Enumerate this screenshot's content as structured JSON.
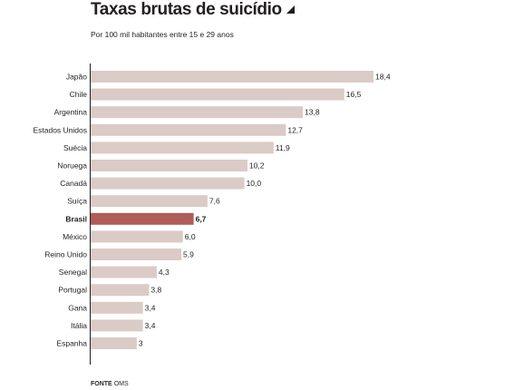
{
  "header": {
    "title": "Taxas brutas de suicídio",
    "subtitle": "Por 100 mil habitantes entre 15 e 29 anos"
  },
  "source": {
    "label": "FONTE",
    "value": "OMS"
  },
  "colors": {
    "bar": "#dacbc7",
    "highlight": "#b05c58",
    "text": "#231f20"
  },
  "chart_data": {
    "type": "bar",
    "orientation": "horizontal",
    "title": "Taxas brutas de suicídio",
    "subtitle": "Por 100 mil habitantes entre 15 e 29 anos",
    "categories": [
      "Japão",
      "Chile",
      "Argentina",
      "Estados Unidos",
      "Suécia",
      "Noruega",
      "Canadá",
      "Suíça",
      "Brasil",
      "México",
      "Reino Unido",
      "Senegal",
      "Portugal",
      "Gana",
      "Itália",
      "Espanha"
    ],
    "values": [
      18.4,
      16.5,
      13.8,
      12.7,
      11.9,
      10.2,
      10.0,
      7.6,
      6.7,
      6.0,
      5.9,
      4.3,
      3.8,
      3.4,
      3.4,
      3
    ],
    "value_labels": [
      "18,4",
      "16,5",
      "13,8",
      "12,7",
      "11,9",
      "10,2",
      "10,0",
      "7,6",
      "6,7",
      "6,0",
      "5,9",
      "4,3",
      "3,8",
      "3,4",
      "3,4",
      "3"
    ],
    "highlight": "Brasil",
    "xlim": [
      0,
      18.4
    ],
    "grid": false,
    "legend": "none"
  }
}
